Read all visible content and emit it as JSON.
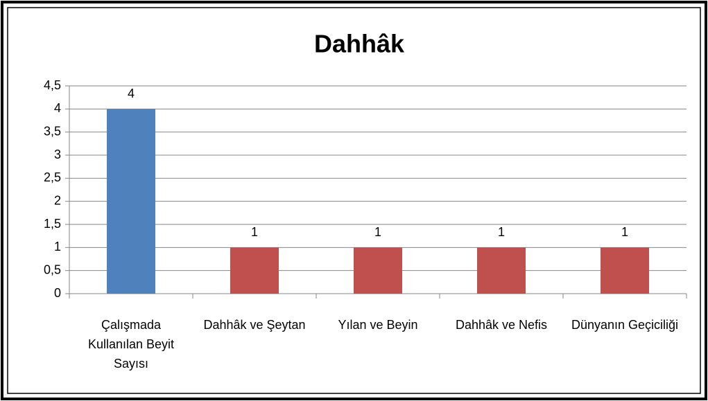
{
  "chart_data": {
    "type": "bar",
    "title": "Dahhâk",
    "categories": [
      "Çalışmada Kullanılan Beyit Sayısı",
      "Dahhâk ve Şeytan",
      "Yılan ve Beyin",
      "Dahhâk ve Nefis",
      "Dünyanın Geçiciliği"
    ],
    "values": [
      4,
      1,
      1,
      1,
      1
    ],
    "colors": [
      "#4f81bd",
      "#c0504d",
      "#c0504d",
      "#c0504d",
      "#c0504d"
    ],
    "ylim": [
      0,
      4.5
    ],
    "yticks": [
      0,
      {
        "value": 0.5,
        "label": "0,5"
      },
      1,
      {
        "value": 1.5,
        "label": "1,5"
      },
      2,
      {
        "value": 2.5,
        "label": "2,5"
      },
      3,
      {
        "value": 3.5,
        "label": "3,5"
      },
      4,
      {
        "value": 4.5,
        "label": "4,5"
      }
    ],
    "grid": true
  }
}
